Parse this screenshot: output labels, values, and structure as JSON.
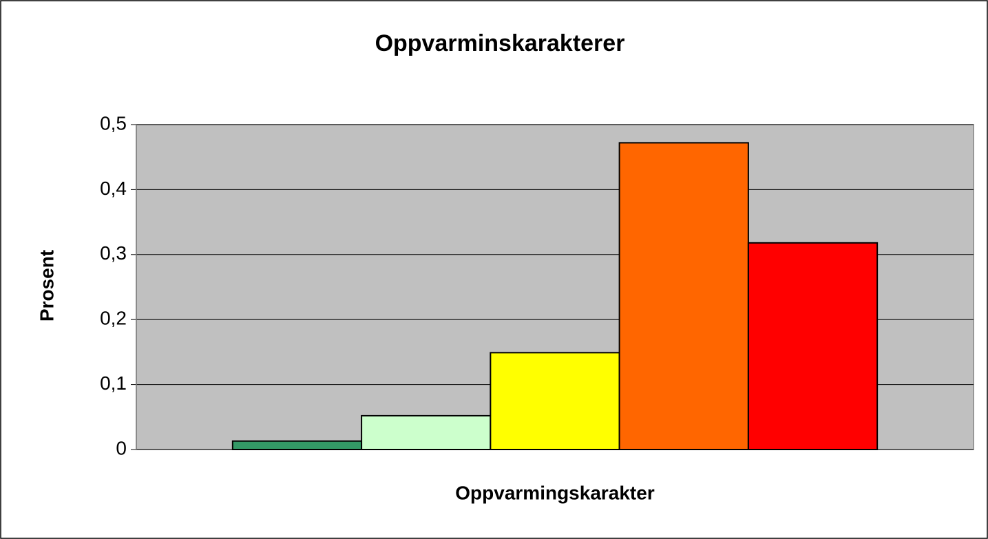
{
  "chart_data": {
    "type": "bar",
    "title": "Oppvarminskarakterer",
    "x_label": "Oppvarmingskarakter",
    "y_label": "Prosent",
    "categories": [
      null
    ],
    "series": [
      {
        "color": "#339966",
        "values": [
          0.013
        ]
      },
      {
        "color": "#ccffcc",
        "values": [
          0.052
        ]
      },
      {
        "color": "#ffff00",
        "values": [
          0.149
        ]
      },
      {
        "color": "#ff6600",
        "values": [
          0.472
        ]
      },
      {
        "color": "#ff0000",
        "values": [
          0.318
        ]
      }
    ],
    "ylim": [
      0,
      0.5
    ],
    "yticks": [
      0,
      {
        "value": 0.1,
        "label": "0,1"
      },
      {
        "value": 0.2,
        "label": "0,2"
      },
      {
        "value": 0.3,
        "label": "0,3"
      },
      {
        "value": 0.4,
        "label": "0,4"
      },
      {
        "value": 0.5,
        "label": "0,5"
      }
    ],
    "grid": true,
    "plot_background": "#c0c0c0"
  }
}
